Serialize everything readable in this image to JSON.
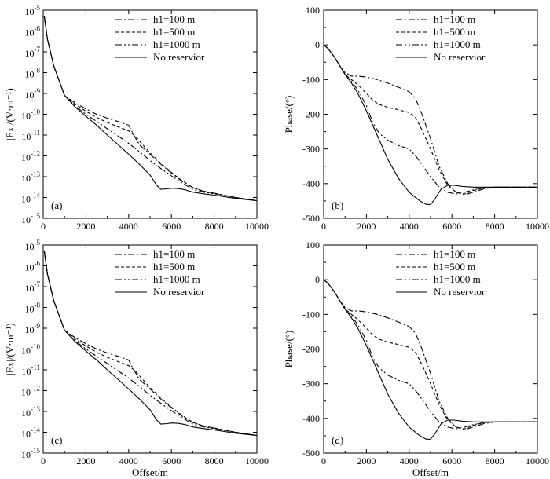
{
  "chart_data": [
    {
      "type": "line",
      "panel_label": "(a)",
      "yscale": "log",
      "xlabel": "",
      "ylabel": "|Ex|/(V·m⁻¹)",
      "xlim": [
        0,
        10000
      ],
      "ylim": [
        1e-15,
        1e-05
      ],
      "x_ticks": [
        "0",
        "2000",
        "4000",
        "6000",
        "8000",
        "10000"
      ],
      "y_tick_bases": [
        "10",
        "10",
        "10",
        "10",
        "10",
        "10",
        "10",
        "10",
        "10",
        "10",
        "10"
      ],
      "y_tick_exps": [
        "-5",
        "-6",
        "-7",
        "-8",
        "-9",
        "-10",
        "-11",
        "-12",
        "-13",
        "-14",
        "-15"
      ],
      "legend": [
        "h1=100 m",
        "h1=500 m",
        "h1=1000 m",
        "No reservior"
      ],
      "series": [
        {
          "name": "h1=100 m",
          "x": [
            50,
            200,
            500,
            1000,
            1500,
            2000,
            2500,
            3000,
            3500,
            4000,
            4200,
            4500,
            5000,
            5500,
            6000,
            6500,
            7000,
            7500,
            8000,
            9000,
            10000
          ],
          "y": [
            5e-06,
            4e-07,
            2e-08,
            8e-10,
            3.5e-10,
            1.8e-10,
            1e-10,
            6.5e-11,
            4.5e-11,
            3e-11,
            1.2e-11,
            3.5e-12,
            1.2e-12,
            4e-13,
            1.5e-13,
            6e-14,
            3e-14,
            2e-14,
            1.6e-14,
            1e-14,
            7e-15
          ]
        },
        {
          "name": "h1=500 m",
          "x": [
            50,
            200,
            500,
            1000,
            1500,
            2000,
            2500,
            3000,
            3500,
            4000,
            4300,
            4600,
            5000,
            5500,
            6000,
            6500,
            7000,
            7500,
            8000,
            9000,
            10000
          ],
          "y": [
            5e-06,
            4e-07,
            2e-08,
            8e-10,
            3e-10,
            1.4e-10,
            7e-11,
            4e-11,
            2.5e-11,
            1.6e-11,
            9e-12,
            4e-12,
            1.4e-12,
            4.5e-13,
            1.6e-13,
            6.5e-14,
            3e-14,
            2e-14,
            1.6e-14,
            1e-14,
            7e-15
          ]
        },
        {
          "name": "h1=1000 m",
          "x": [
            50,
            200,
            500,
            1000,
            1500,
            2000,
            2500,
            3000,
            3500,
            4000,
            4500,
            5000,
            5500,
            6000,
            6500,
            7000,
            7500,
            8000,
            9000,
            10000
          ],
          "y": [
            5e-06,
            4e-07,
            2e-08,
            8e-10,
            2.5e-10,
            1e-10,
            4.5e-11,
            2e-11,
            9e-12,
            4e-12,
            1.6e-12,
            6e-13,
            2.5e-13,
            1.1e-13,
            5e-14,
            2.5e-14,
            1.8e-14,
            1.5e-14,
            1e-14,
            7e-15
          ]
        },
        {
          "name": "No reservior",
          "x": [
            50,
            200,
            500,
            1000,
            1500,
            2000,
            2500,
            3000,
            3500,
            4000,
            4500,
            5000,
            5300,
            5500,
            5800,
            6000,
            6300,
            6600,
            7000,
            7500,
            8000,
            9000,
            10000
          ],
          "y": [
            5e-06,
            4e-07,
            2e-08,
            8e-10,
            2.2e-10,
            8e-11,
            3e-11,
            1e-11,
            3.5e-12,
            1.2e-12,
            4e-13,
            1.2e-13,
            4e-14,
            2.5e-14,
            2.6e-14,
            2.8e-14,
            2.7e-14,
            2.4e-14,
            1.8e-14,
            1.5e-14,
            1.3e-14,
            9e-15,
            7e-15
          ]
        }
      ]
    },
    {
      "type": "line",
      "panel_label": "(b)",
      "yscale": "linear",
      "xlabel": "",
      "ylabel": "Phase/(°)",
      "xlim": [
        0,
        10000
      ],
      "ylim": [
        -500,
        100
      ],
      "x_ticks": [
        "0",
        "2000",
        "4000",
        "6000",
        "8000",
        "10000"
      ],
      "y_ticks": [
        "100",
        "0",
        "-100",
        "-200",
        "-300",
        "-400",
        "-500"
      ],
      "legend": [
        "h1=100 m",
        "h1=500 m",
        "h1=1000 m",
        "No reservior"
      ],
      "series": [
        {
          "name": "h1=100 m",
          "x": [
            0,
            200,
            500,
            800,
            1000,
            1300,
            1600,
            2000,
            2500,
            3000,
            3500,
            4000,
            4300,
            4600,
            5000,
            5400,
            5800,
            6200,
            6600,
            7000,
            7500,
            8000,
            9000,
            10000
          ],
          "y": [
            0,
            -10,
            -35,
            -65,
            -80,
            -90,
            -90,
            -93,
            -100,
            -110,
            -122,
            -135,
            -155,
            -200,
            -270,
            -350,
            -400,
            -425,
            -432,
            -425,
            -415,
            -410,
            -410,
            -410
          ]
        },
        {
          "name": "h1=500 m",
          "x": [
            0,
            200,
            500,
            800,
            1000,
            1300,
            1600,
            2000,
            2300,
            2600,
            3000,
            3500,
            4000,
            4300,
            4600,
            5000,
            5400,
            5800,
            6200,
            6600,
            7000,
            7500,
            8000,
            9000,
            10000
          ],
          "y": [
            0,
            -10,
            -35,
            -65,
            -85,
            -100,
            -115,
            -140,
            -160,
            -172,
            -180,
            -187,
            -195,
            -210,
            -245,
            -300,
            -360,
            -405,
            -425,
            -430,
            -420,
            -412,
            -410,
            -410,
            -410
          ]
        },
        {
          "name": "h1=1000 m",
          "x": [
            0,
            200,
            500,
            800,
            1000,
            1300,
            1600,
            2000,
            2300,
            2600,
            3000,
            3500,
            4000,
            4300,
            4600,
            5000,
            5400,
            5800,
            6200,
            6600,
            7000,
            7500,
            8000,
            9000,
            10000
          ],
          "y": [
            0,
            -10,
            -35,
            -65,
            -85,
            -105,
            -130,
            -175,
            -225,
            -255,
            -275,
            -290,
            -300,
            -320,
            -345,
            -380,
            -410,
            -425,
            -430,
            -425,
            -418,
            -412,
            -410,
            -410,
            -410
          ]
        },
        {
          "name": "No reservior",
          "x": [
            0,
            200,
            500,
            800,
            1000,
            1300,
            1600,
            2000,
            2500,
            3000,
            3500,
            4000,
            4500,
            4800,
            5000,
            5200,
            5500,
            5800,
            6100,
            6500,
            7000,
            7500,
            8000,
            9000,
            10000
          ],
          "y": [
            0,
            -10,
            -35,
            -65,
            -85,
            -110,
            -140,
            -190,
            -260,
            -330,
            -385,
            -425,
            -450,
            -460,
            -460,
            -445,
            -415,
            -405,
            -405,
            -408,
            -410,
            -410,
            -410,
            -410,
            -410
          ]
        }
      ]
    },
    {
      "type": "line",
      "panel_label": "(c)",
      "yscale": "log",
      "xlabel": "Offset/m",
      "ylabel": "|Ex|/(V·m⁻¹)",
      "xlim": [
        0,
        10000
      ],
      "ylim": [
        1e-15,
        1e-05
      ],
      "x_ticks": [
        "0",
        "2000",
        "4000",
        "6000",
        "8000",
        "10000"
      ],
      "y_tick_bases": [
        "10",
        "10",
        "10",
        "10",
        "10",
        "10",
        "10",
        "10",
        "10",
        "10",
        "10"
      ],
      "y_tick_exps": [
        "-5",
        "-6",
        "-7",
        "-8",
        "-9",
        "-10",
        "-11",
        "-12",
        "-13",
        "-14",
        "-15"
      ],
      "legend": [
        "h1=100 m",
        "h1=500 m",
        "h1=1000 m",
        "No reservior"
      ],
      "series": [
        {
          "name": "h1=100 m",
          "x": [
            50,
            200,
            500,
            1000,
            1500,
            2000,
            2500,
            3000,
            3500,
            4000,
            4200,
            4500,
            5000,
            5500,
            6000,
            6500,
            7000,
            7500,
            8000,
            9000,
            10000
          ],
          "y": [
            5e-06,
            4e-07,
            2e-08,
            8e-10,
            3.5e-10,
            1.8e-10,
            1e-10,
            6.5e-11,
            4.5e-11,
            3e-11,
            1.2e-11,
            3.5e-12,
            1.2e-12,
            4e-13,
            1.5e-13,
            6e-14,
            3e-14,
            2e-14,
            1.6e-14,
            1e-14,
            7e-15
          ]
        },
        {
          "name": "h1=500 m",
          "x": [
            50,
            200,
            500,
            1000,
            1500,
            2000,
            2500,
            3000,
            3500,
            4000,
            4300,
            4600,
            5000,
            5500,
            6000,
            6500,
            7000,
            7500,
            8000,
            9000,
            10000
          ],
          "y": [
            5e-06,
            4e-07,
            2e-08,
            8e-10,
            3e-10,
            1.4e-10,
            7e-11,
            4e-11,
            2.5e-11,
            1.6e-11,
            9e-12,
            4e-12,
            1.4e-12,
            4.5e-13,
            1.6e-13,
            6.5e-14,
            3e-14,
            2e-14,
            1.6e-14,
            1e-14,
            7e-15
          ]
        },
        {
          "name": "h1=1000 m",
          "x": [
            50,
            200,
            500,
            1000,
            1500,
            2000,
            2500,
            3000,
            3500,
            4000,
            4500,
            5000,
            5500,
            6000,
            6500,
            7000,
            7500,
            8000,
            9000,
            10000
          ],
          "y": [
            5e-06,
            4e-07,
            2e-08,
            8e-10,
            2.5e-10,
            1e-10,
            4.5e-11,
            2e-11,
            9e-12,
            4e-12,
            1.6e-12,
            6e-13,
            2.5e-13,
            1.1e-13,
            5e-14,
            2.5e-14,
            1.8e-14,
            1.5e-14,
            1e-14,
            7e-15
          ]
        },
        {
          "name": "No reservior",
          "x": [
            50,
            200,
            500,
            1000,
            1500,
            2000,
            2500,
            3000,
            3500,
            4000,
            4500,
            5000,
            5300,
            5500,
            5800,
            6000,
            6300,
            6600,
            7000,
            7500,
            8000,
            9000,
            10000
          ],
          "y": [
            5e-06,
            4e-07,
            2e-08,
            8e-10,
            2.2e-10,
            8e-11,
            3e-11,
            1e-11,
            3.5e-12,
            1.2e-12,
            4e-13,
            1.2e-13,
            4e-14,
            2.5e-14,
            2.6e-14,
            2.8e-14,
            2.7e-14,
            2.4e-14,
            1.8e-14,
            1.5e-14,
            1.3e-14,
            9e-15,
            7e-15
          ]
        }
      ]
    },
    {
      "type": "line",
      "panel_label": "(d)",
      "yscale": "linear",
      "xlabel": "Offset/m",
      "ylabel": "Phase/(°)",
      "xlim": [
        0,
        10000
      ],
      "ylim": [
        -500,
        100
      ],
      "x_ticks": [
        "0",
        "2000",
        "4000",
        "6000",
        "8000",
        "10000"
      ],
      "y_ticks": [
        "100",
        "0",
        "-100",
        "-200",
        "-300",
        "-400",
        "-500"
      ],
      "legend": [
        "h1=100 m",
        "h1=500 m",
        "h1=1000 m",
        "No reservior"
      ],
      "series": [
        {
          "name": "h1=100 m",
          "x": [
            0,
            200,
            500,
            800,
            1000,
            1300,
            1600,
            2000,
            2500,
            3000,
            3500,
            4000,
            4300,
            4600,
            5000,
            5400,
            5800,
            6200,
            6600,
            7000,
            7500,
            8000,
            9000,
            10000
          ],
          "y": [
            0,
            -10,
            -35,
            -65,
            -80,
            -90,
            -90,
            -93,
            -100,
            -110,
            -122,
            -135,
            -155,
            -200,
            -270,
            -350,
            -400,
            -425,
            -432,
            -425,
            -415,
            -410,
            -410,
            -410
          ]
        },
        {
          "name": "h1=500 m",
          "x": [
            0,
            200,
            500,
            800,
            1000,
            1300,
            1600,
            2000,
            2300,
            2600,
            3000,
            3500,
            4000,
            4300,
            4600,
            5000,
            5400,
            5800,
            6200,
            6600,
            7000,
            7500,
            8000,
            9000,
            10000
          ],
          "y": [
            0,
            -10,
            -35,
            -65,
            -85,
            -100,
            -115,
            -140,
            -160,
            -172,
            -180,
            -187,
            -195,
            -210,
            -245,
            -300,
            -360,
            -405,
            -425,
            -430,
            -420,
            -412,
            -410,
            -410,
            -410
          ]
        },
        {
          "name": "h1=1000 m",
          "x": [
            0,
            200,
            500,
            800,
            1000,
            1300,
            1600,
            2000,
            2300,
            2600,
            3000,
            3500,
            4000,
            4300,
            4600,
            5000,
            5400,
            5800,
            6200,
            6600,
            7000,
            7500,
            8000,
            9000,
            10000
          ],
          "y": [
            0,
            -10,
            -35,
            -65,
            -85,
            -105,
            -130,
            -175,
            -225,
            -255,
            -275,
            -290,
            -300,
            -320,
            -345,
            -380,
            -410,
            -425,
            -430,
            -425,
            -418,
            -412,
            -410,
            -410,
            -410
          ]
        },
        {
          "name": "No reservior",
          "x": [
            0,
            200,
            500,
            800,
            1000,
            1300,
            1600,
            2000,
            2500,
            3000,
            3500,
            4000,
            4500,
            4800,
            5000,
            5200,
            5500,
            5800,
            6100,
            6500,
            7000,
            7500,
            8000,
            9000,
            10000
          ],
          "y": [
            0,
            -10,
            -35,
            -65,
            -85,
            -110,
            -140,
            -190,
            -260,
            -330,
            -385,
            -425,
            -450,
            -460,
            -460,
            -445,
            -415,
            -405,
            -405,
            -408,
            -410,
            -410,
            -410,
            -410,
            -410
          ]
        }
      ]
    }
  ]
}
